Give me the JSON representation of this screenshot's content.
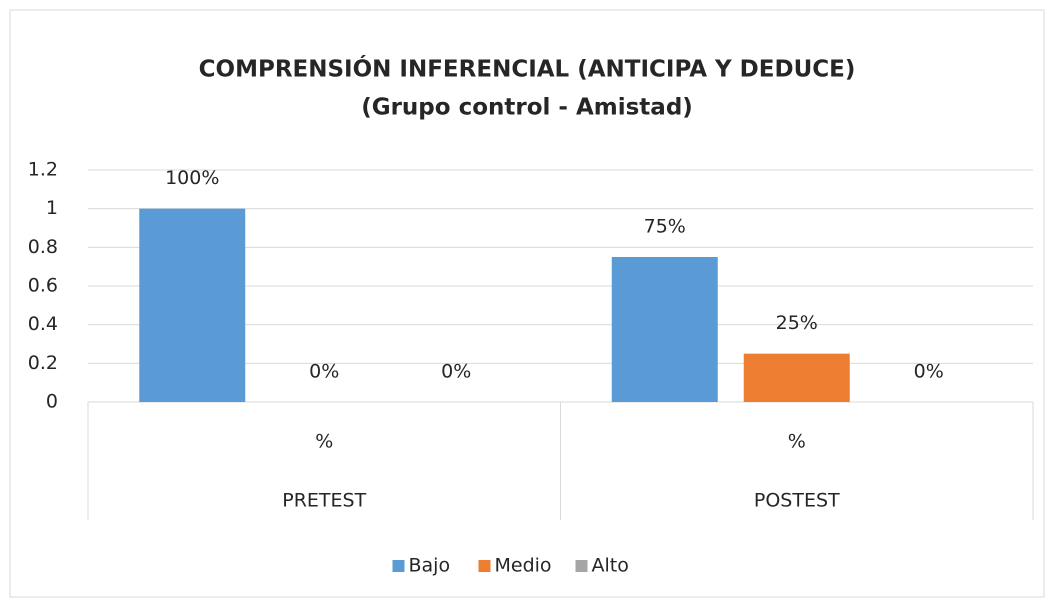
{
  "chart_data": {
    "type": "bar",
    "title": "COMPRENSIÓN INFERENCIAL (ANTICIPA Y DEDUCE)",
    "subtitle": "(Grupo control - Amistad)",
    "categories": [
      "%",
      "%"
    ],
    "groups": [
      "PRETEST",
      "POSTEST"
    ],
    "series": [
      {
        "name": "Bajo",
        "color": "#5b9bd5",
        "values": [
          1,
          0.75
        ],
        "value_labels": [
          "100%",
          "75%"
        ]
      },
      {
        "name": "Medio",
        "color": "#ed7d31",
        "values": [
          0,
          0.25
        ],
        "value_labels": [
          "0%",
          "25%"
        ]
      },
      {
        "name": "Alto",
        "color": "#a5a5a5",
        "values": [
          0,
          0
        ],
        "value_labels": [
          "0%",
          "0%"
        ]
      }
    ],
    "ylim": [
      0,
      1.2
    ],
    "yticks": [
      0,
      0.2,
      0.4,
      0.6,
      0.8,
      1,
      1.2
    ],
    "grid": true,
    "legend": "bottom"
  }
}
